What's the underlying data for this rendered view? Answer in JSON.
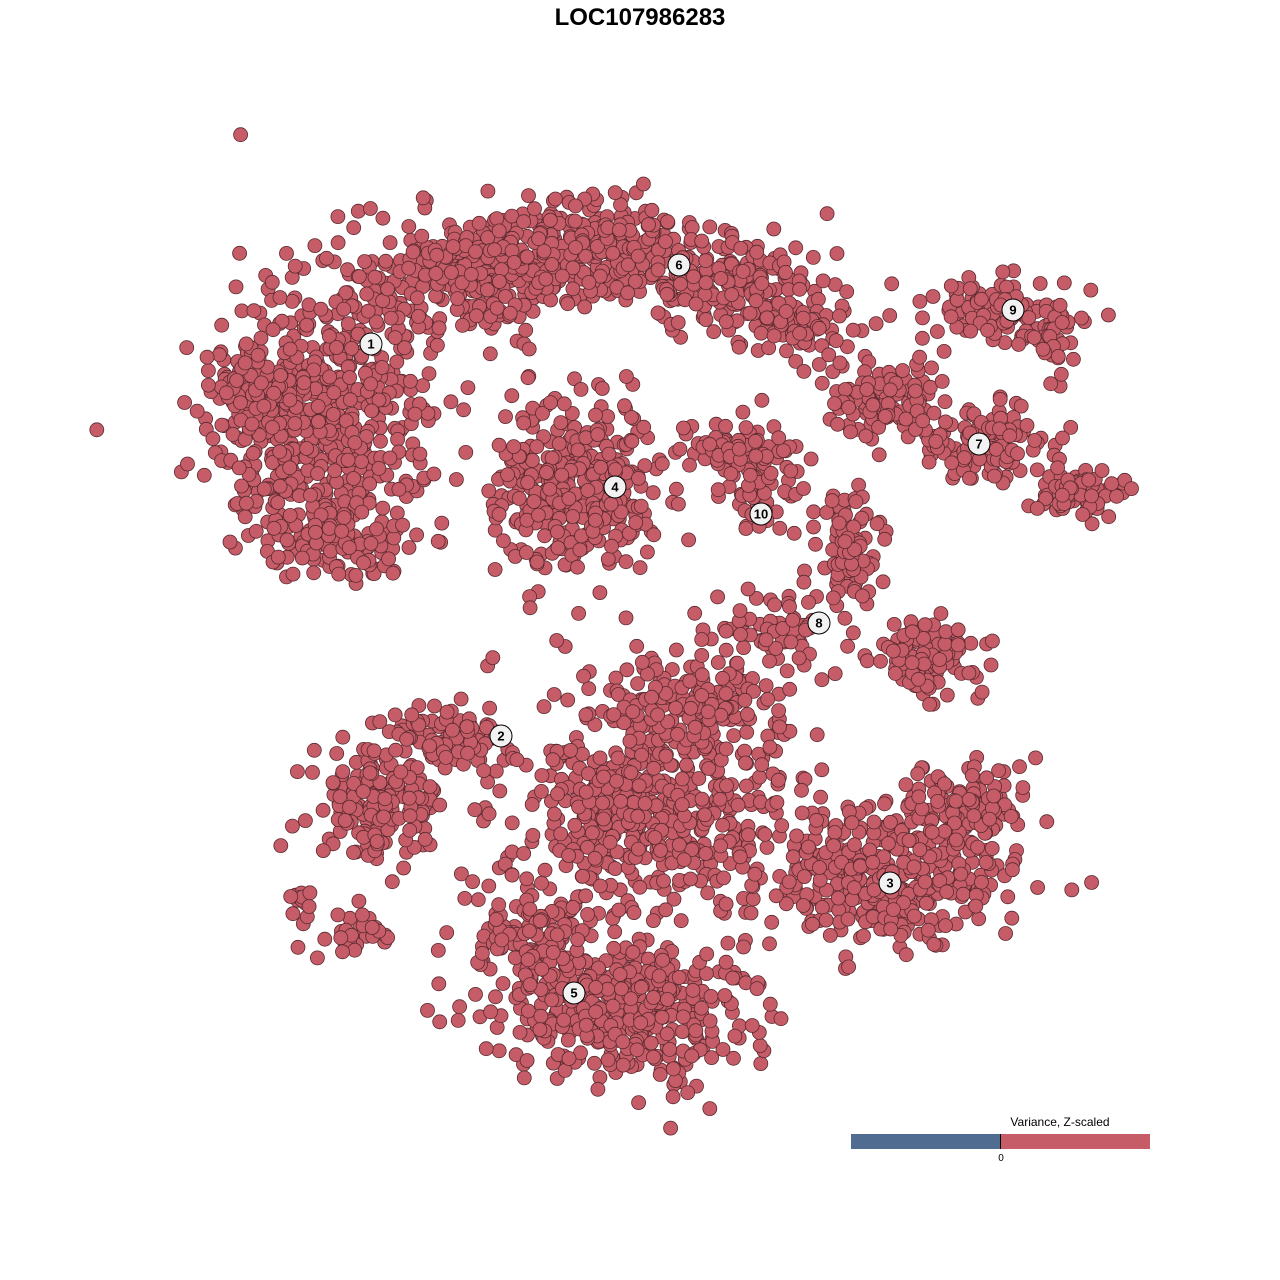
{
  "chart_data": {
    "type": "scatter",
    "title": "LOC107986283",
    "xlabel": "",
    "ylabel": "",
    "grid": false,
    "point_color": "#c55c67",
    "point_edge_color": "#5a2a2f",
    "clusters": [
      "1",
      "2",
      "3",
      "4",
      "5",
      "6",
      "7",
      "8",
      "9",
      "10"
    ],
    "legend": {
      "title": "Variance, Z-scaled",
      "placement": "bottom-right",
      "low_color": "#506d91",
      "high_color": "#c55c67",
      "ticks": [
        "0"
      ]
    }
  }
}
